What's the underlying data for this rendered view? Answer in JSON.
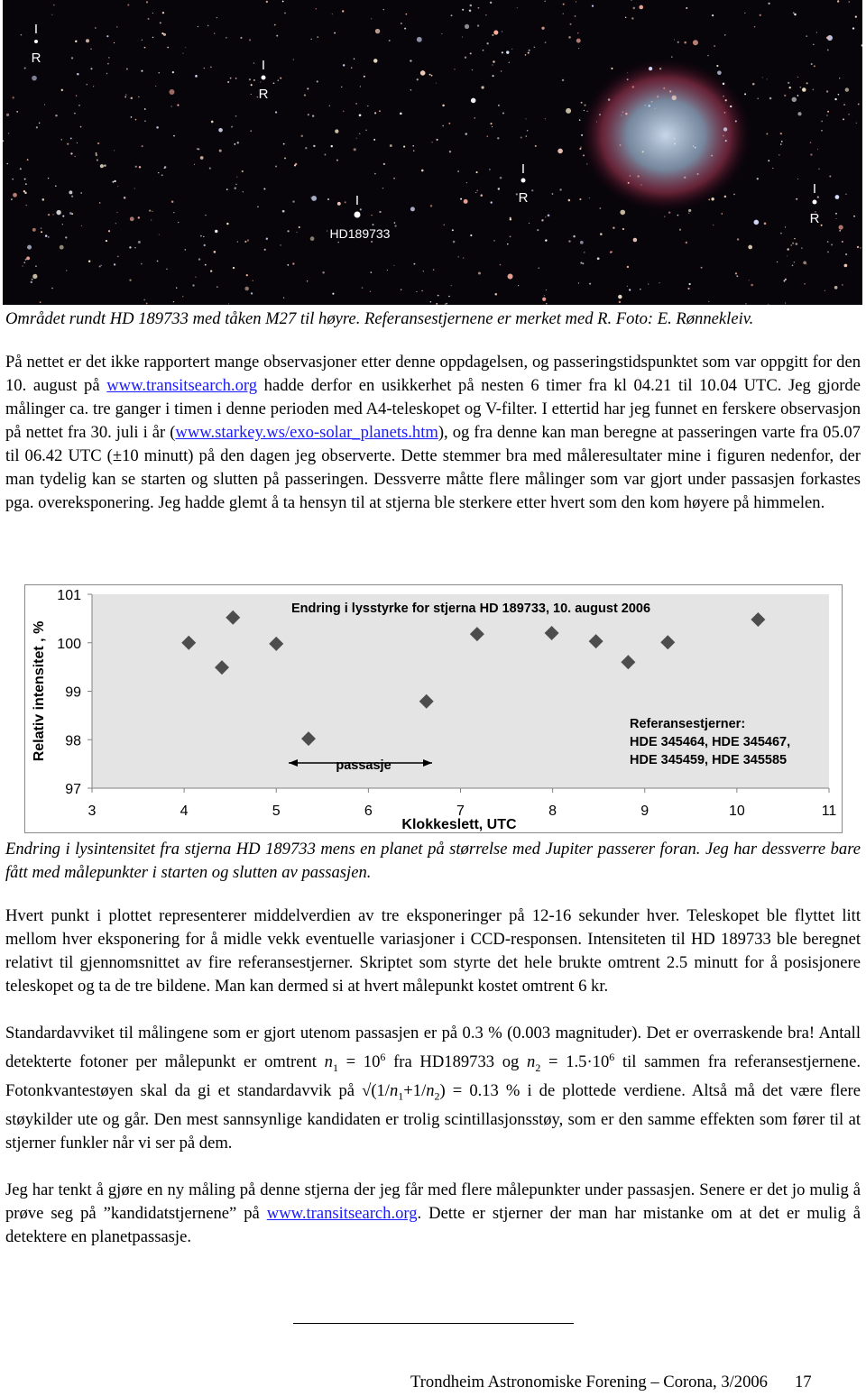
{
  "photo": {
    "labels": [
      "I",
      "R",
      "I",
      "R",
      "I",
      "R",
      "I",
      "R",
      "I",
      "HD189733"
    ]
  },
  "photo_caption": "Området rundt HD 189733 med tåken M27 til høyre. Referansestjernene er merket med R. Foto: E. Rønnekleiv.",
  "paragraphs_top": [
    [
      "På nettet er det ikke rapportert mange observasjoner etter denne oppdagelsen, og passeringstidspunktet som var oppgitt for den 10. august på ",
      {
        "text": "www.transitsearch.org",
        "style": "link"
      },
      " hadde derfor en usikkerhet på nesten 6 timer fra kl 04.21 til 10.04 UTC. Jeg gjorde målinger ca. tre ganger i timen i denne perioden med A4-teleskopet og V-filter. I ettertid har jeg funnet en ferskere observasjon på nettet fra 30. juli i år (",
      {
        "text": "www.starkey.ws/exo-solar_planets.htm",
        "style": "link"
      },
      "), og fra denne kan man beregne at passeringen varte fra 05.07 til 06.42 UTC (±10 minutt) på den dagen jeg observerte. Dette stemmer bra med måleresultater mine i figuren nedenfor, der man tydelig kan se starten og slutten på passeringen. Dessverre måtte flere må­linger som var gjort under passasjen forkastes pga. overeksponering. Jeg hadde glemt å ta hensyn til at stjerna ble sterkere etter hvert som den kom høyere på himmelen."
    ]
  ],
  "chart_data": {
    "type": "scatter",
    "title": "Endring i lysstyrke for stjerna HD 189733, 10. august 2006",
    "x_label": "Klokkeslett, UTC",
    "y_label": "Relativ intensitet , %",
    "x": [
      4.05,
      4.41,
      4.53,
      5.0,
      5.35,
      6.63,
      7.18,
      7.99,
      8.47,
      8.82,
      9.25,
      10.23
    ],
    "values": [
      100.0,
      99.49,
      100.52,
      99.98,
      98.02,
      98.79,
      100.18,
      100.2,
      100.03,
      99.6,
      100.01,
      100.48
    ],
    "color": "#4d4d4d",
    "xlim": [
      3,
      11
    ],
    "xticks": [
      3,
      4,
      5,
      6,
      7,
      8,
      9,
      10,
      11
    ],
    "ylim": [
      97,
      101
    ],
    "yticks": [
      97,
      98,
      99,
      100,
      101
    ],
    "grid": false,
    "annotations": [
      "passasje"
    ],
    "note": [
      "Referansestjerner:",
      "HDE 345464, HDE 345467,",
      "HDE 345459, HDE 345585"
    ]
  },
  "chart_caption": "Endring i lysintensitet fra stjerna HD 189733 mens en planet på størrelse med Jupiter passerer foran. Jeg har dessverre bare fått med målepunkter i starten og slutten av passasjen.",
  "paragraphs": [
    [
      "Hvert punkt i plottet representerer middelverdien av tre eksponeringer på 12-16 sekunder hver. Tele­skopet ble flyttet litt mellom hver eksponering for å midle vekk eventuelle variasjoner i CCD-responsen. Intensiteten til HD 189733 ble beregnet relativt til gjennomsnittet av fire referansestjerner. Skriptet som styrte det hele brukte omtrent 2.5 minutt for å posisjonere teleskopet og ta de tre bildene. Man kan dermed si at hvert målepunkt kostet omtrent 6 kr."
    ],
    [
      "Standardavviket til målingene som er gjort utenom passasjen er på 0.3 % (0.003 magnituder). Det er overraskende bra! Antall detekterte fotoner per målepunkt er omtrent ",
      {
        "text": "n",
        "style": "i"
      },
      {
        "text": "1",
        "style": "sub"
      },
      " = 10",
      {
        "text": "6",
        "style": "sup"
      },
      " fra HD189733 og ",
      {
        "text": "n",
        "style": "i"
      },
      {
        "text": "2",
        "style": "sub"
      },
      " = 1.5·10",
      {
        "text": "6",
        "style": "sup"
      },
      " til sammen fra referansestjernene. Fotonkvantestøyen skal da gi et standardavvik på √(1/",
      {
        "text": "n",
        "style": "i"
      },
      {
        "text": "1",
        "style": "sub"
      },
      "+1/",
      {
        "text": "n",
        "style": "i"
      },
      {
        "text": "2",
        "style": "sub"
      },
      ") = 0.13 % i de plottede verdiene. Altså må det være flere støykilder ute og går.  Den mest sannsynlige kandidaten er trolig scintillasjonsstøy, som er den samme effekten som fører til at stjerner funkler når vi ser på dem."
    ],
    [
      "Jeg har tenkt å gjøre en ny måling på denne stjerna der jeg får med flere målepunkter under passasjen. Senere er det jo mulig å prøve seg på ”kandidatstjernene” på ",
      {
        "text": "www.transitsearch.org",
        "style": "link"
      },
      ". Dette er stjerner der man har mistanke om at det er mulig å detektere en planetpassasje."
    ]
  ],
  "footer": {
    "text": "Trondheim Astronomiske Forening – Corona, 3/2006",
    "page": "17"
  }
}
